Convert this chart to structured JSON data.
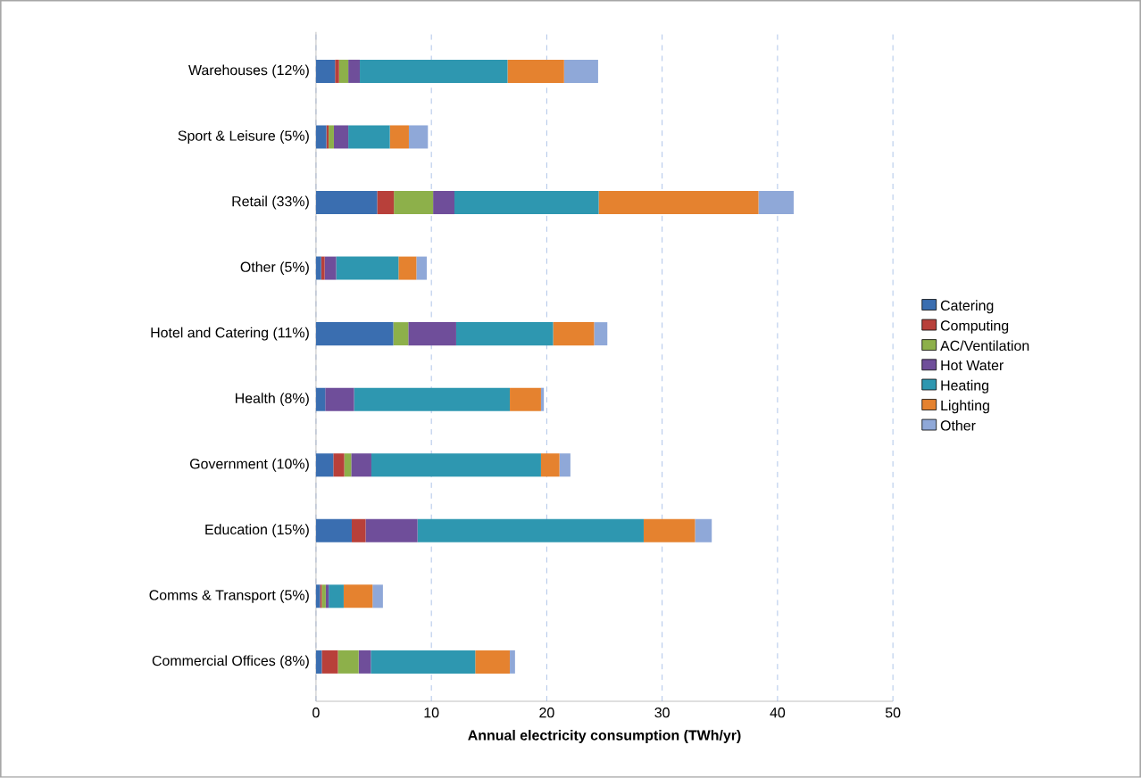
{
  "chart_data": {
    "type": "bar",
    "orientation": "horizontal",
    "stacked": true,
    "xlabel": "Annual electricity consumption  (TWh/yr)",
    "categories": [
      "Warehouses (12%)",
      "Sport & Leisure (5%)",
      "Retail (33%)",
      "Other (5%)",
      "Hotel and Catering (11%)",
      "Health (8%)",
      "Government (10%)",
      "Education (15%)",
      "Comms & Transport (5%)",
      "Commercial Offices (8%)"
    ],
    "series": [
      {
        "name": "Catering",
        "color": "#3a6eb0",
        "values": [
          1.65,
          0.9,
          5.3,
          0.45,
          6.7,
          0.8,
          1.5,
          3.1,
          0.35,
          0.5
        ]
      },
      {
        "name": "Computing",
        "color": "#b8403a",
        "values": [
          0.35,
          0.2,
          1.45,
          0.3,
          0,
          0,
          0.95,
          1.2,
          0.15,
          1.4
        ]
      },
      {
        "name": "AC/Ventilation",
        "color": "#8db04a",
        "values": [
          0.8,
          0.45,
          3.4,
          0,
          1.3,
          0,
          0.6,
          0,
          0.35,
          1.8
        ]
      },
      {
        "name": "Hot Water",
        "color": "#6f4e9a",
        "values": [
          1.0,
          1.25,
          1.85,
          1.0,
          4.15,
          2.5,
          1.75,
          4.5,
          0.25,
          1.05
        ]
      },
      {
        "name": "Heating",
        "color": "#2e97b0",
        "values": [
          12.8,
          3.6,
          12.5,
          5.4,
          8.4,
          13.5,
          14.7,
          19.6,
          1.3,
          9.05
        ]
      },
      {
        "name": "Lighting",
        "color": "#e5822f",
        "values": [
          4.9,
          1.65,
          13.85,
          1.55,
          3.55,
          2.7,
          1.6,
          4.45,
          2.5,
          3.0
        ]
      },
      {
        "name": "Other",
        "color": "#8fa8d8",
        "values": [
          2.95,
          1.65,
          3.05,
          0.9,
          1.15,
          0.25,
          0.95,
          1.45,
          0.9,
          0.45
        ]
      }
    ],
    "xlim": [
      0,
      50
    ],
    "xticks": [
      0,
      10,
      20,
      30,
      40,
      50
    ],
    "grid": "x",
    "legend": "right"
  }
}
